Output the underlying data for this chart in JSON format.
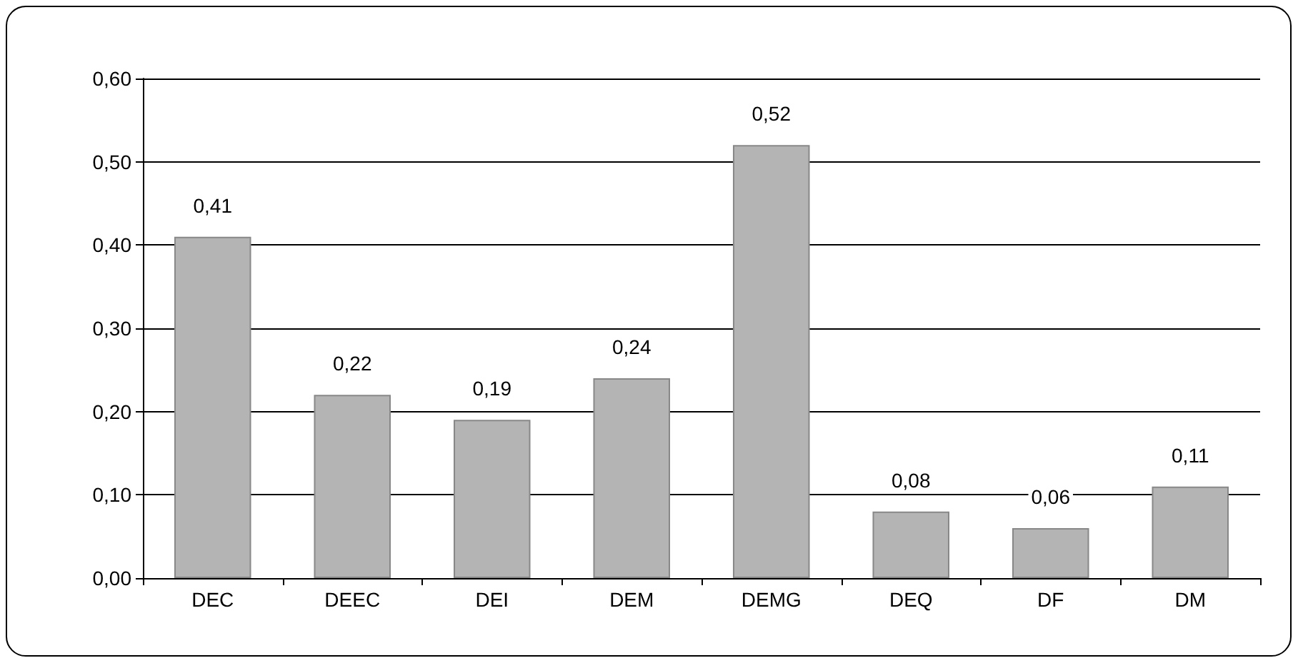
{
  "chart_data": {
    "type": "bar",
    "categories": [
      "DEC",
      "DEEC",
      "DEI",
      "DEM",
      "DEMG",
      "DEQ",
      "DF",
      "DM"
    ],
    "values": [
      0.41,
      0.22,
      0.19,
      0.24,
      0.52,
      0.08,
      0.06,
      0.11
    ],
    "value_labels": [
      "0,41",
      "0,22",
      "0,19",
      "0,24",
      "0,52",
      "0,08",
      "0,06",
      "0,11"
    ],
    "color": "#b4b4b4",
    "ylim": [
      0,
      0.6
    ],
    "yticks": [
      {
        "value": 0,
        "label": "0,00"
      },
      {
        "value": 0.1,
        "label": "0,10"
      },
      {
        "value": 0.2,
        "label": "0,20"
      },
      {
        "value": 0.3,
        "label": "0,30"
      },
      {
        "value": 0.4,
        "label": "0,40"
      },
      {
        "value": 0.5,
        "label": "0,50"
      },
      {
        "value": 0.6,
        "label": "0,60"
      }
    ],
    "grid": "y"
  }
}
